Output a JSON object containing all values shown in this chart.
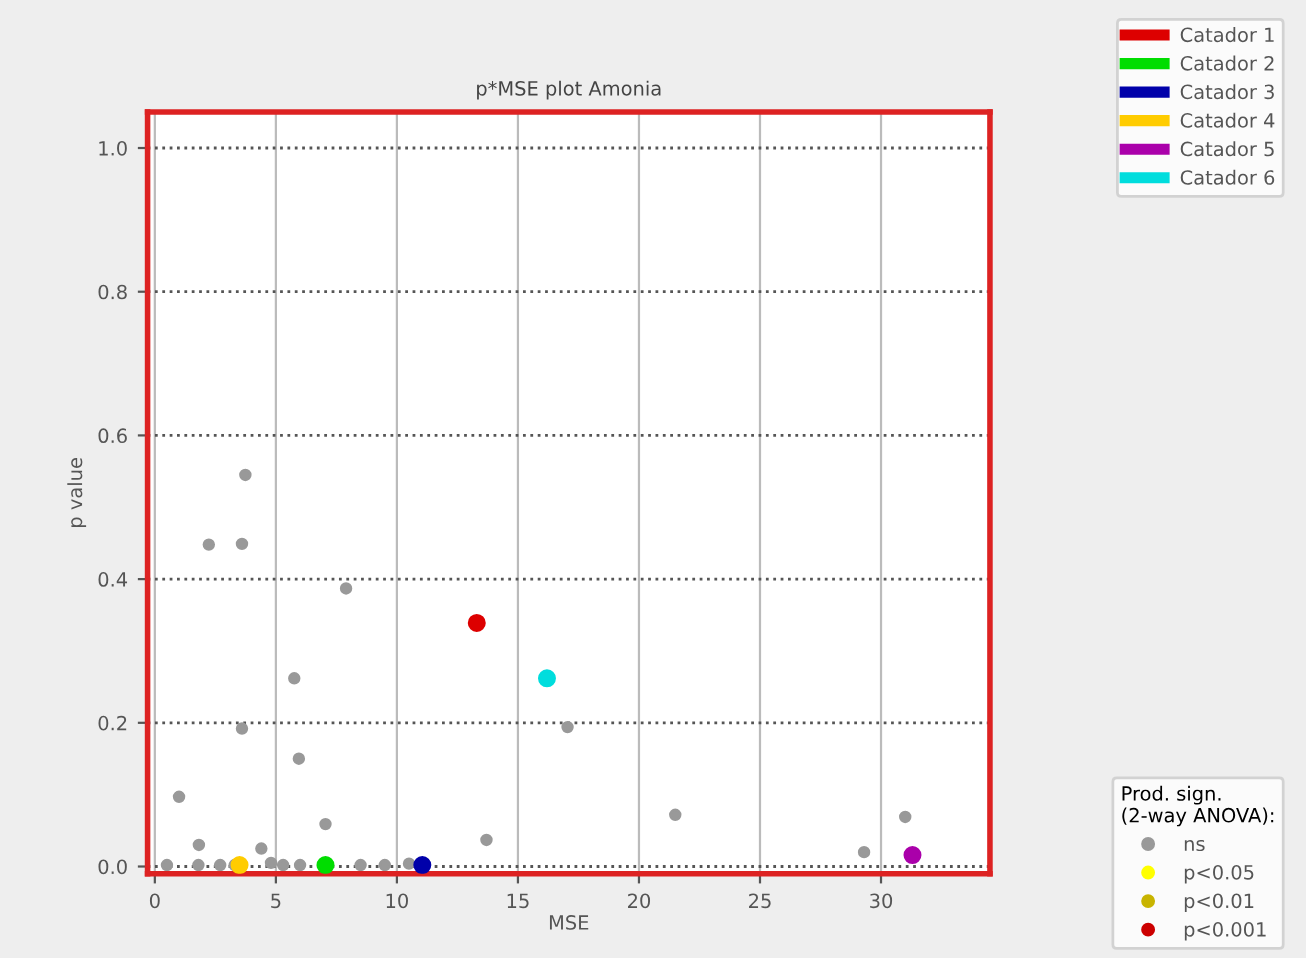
{
  "chart_data": {
    "type": "scatter",
    "title": "p*MSE plot Amonia",
    "xlabel": "MSE",
    "ylabel": "p value",
    "xlim": [
      -0.3,
      34.5
    ],
    "ylim": [
      -0.01,
      1.05
    ],
    "xticks": [
      0,
      5,
      10,
      15,
      20,
      25,
      30
    ],
    "yticks": [
      {
        "value": 0,
        "label": "0.0"
      },
      {
        "value": 0.2,
        "label": "0.2"
      },
      {
        "value": 0.4,
        "label": "0.4"
      },
      {
        "value": 0.6,
        "label": "0.6"
      },
      {
        "value": 0.8,
        "label": "0.8"
      },
      {
        "value": 1,
        "label": "1.0"
      }
    ],
    "grid": true,
    "legend": "right",
    "marker": "circle",
    "legend_title": "Prod. sign.\n(2-way ANOVA):",
    "series": [
      {
        "name": "Catador 1",
        "color": "#dd0000",
        "x": [
          13.3
        ],
        "values": [
          0.339
        ]
      },
      {
        "name": "Catador 2",
        "color": "#00dd00",
        "x": [
          7.05
        ],
        "values": [
          0.002
        ]
      },
      {
        "name": "Catador 3",
        "color": "#0000aa",
        "x": [
          11.05
        ],
        "values": [
          0.002
        ]
      },
      {
        "name": "Catador 4",
        "color": "#ffcc00",
        "x": [
          3.5
        ],
        "values": [
          0.002
        ]
      },
      {
        "name": "Catador 5",
        "color": "#aa00aa",
        "x": [
          31.3
        ],
        "values": [
          0.016
        ]
      },
      {
        "name": "Catador 6",
        "color": "#00dddd",
        "x": [
          16.2
        ],
        "values": [
          0.262
        ]
      },
      {
        "name": "ns",
        "color": "#999999",
        "x": [
          3.74,
          2.23,
          3.6,
          7.9,
          5.76,
          3.6,
          5.95,
          1.0,
          7.05,
          1.82,
          4.4,
          13.7,
          17.05,
          21.5,
          31.0,
          29.3,
          0.5,
          1.8,
          2.7,
          3.3,
          4.8,
          5.3,
          6.0,
          8.5,
          9.5,
          10.5
        ],
        "values": [
          0.545,
          0.448,
          0.449,
          0.387,
          0.262,
          0.192,
          0.15,
          0.097,
          0.059,
          0.03,
          0.025,
          0.037,
          0.194,
          0.072,
          0.069,
          0.02,
          0.002,
          0.002,
          0.002,
          0.002,
          0.005,
          0.002,
          0.002,
          0.002,
          0.002,
          0.004
        ]
      },
      {
        "name": "p<0.05",
        "color": "#ffff00"
      },
      {
        "name": "p<0.01",
        "color": "#c8b400"
      },
      {
        "name": "p<0.001",
        "color": "#cc0000"
      }
    ]
  }
}
